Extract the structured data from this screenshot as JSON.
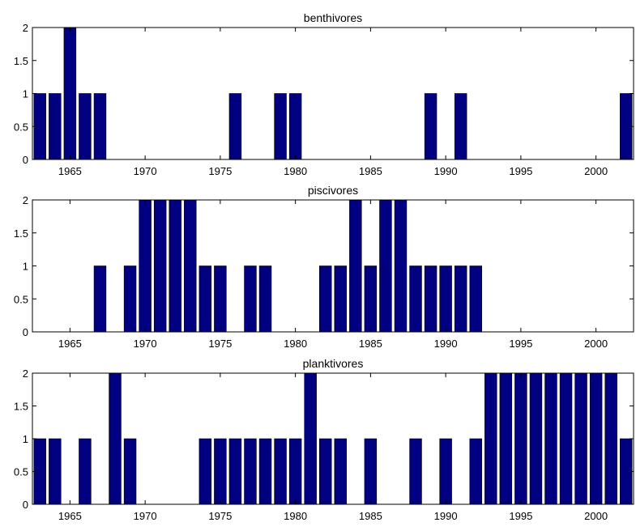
{
  "chart_data": [
    {
      "type": "bar",
      "title": "benthivores",
      "xlim": [
        1963,
        2002
      ],
      "ylim": [
        0,
        2
      ],
      "xticks": [
        1965,
        1970,
        1975,
        1980,
        1985,
        1990,
        1995,
        2000
      ],
      "yticks": [
        0,
        0.5,
        1,
        1.5,
        2
      ],
      "ytick_labels": [
        "0",
        "0.5",
        "1",
        "1.5",
        "2"
      ],
      "bar_color": "#000080",
      "x": [
        1963,
        1964,
        1965,
        1966,
        1967,
        1976,
        1979,
        1980,
        1989,
        1991,
        2002
      ],
      "values": [
        1,
        1,
        2,
        1,
        1,
        1,
        1,
        1,
        1,
        1,
        1
      ]
    },
    {
      "type": "bar",
      "title": "piscivores",
      "xlim": [
        1963,
        2002
      ],
      "ylim": [
        0,
        2
      ],
      "xticks": [
        1965,
        1970,
        1975,
        1980,
        1985,
        1990,
        1995,
        2000
      ],
      "yticks": [
        0,
        0.5,
        1,
        1.5,
        2
      ],
      "ytick_labels": [
        "0",
        "0.5",
        "1",
        "1.5",
        "2"
      ],
      "bar_color": "#000080",
      "x": [
        1967,
        1969,
        1970,
        1971,
        1972,
        1973,
        1974,
        1975,
        1977,
        1978,
        1982,
        1983,
        1984,
        1985,
        1986,
        1987,
        1988,
        1989,
        1990,
        1991,
        1992
      ],
      "values": [
        1,
        1,
        2,
        2,
        2,
        2,
        1,
        1,
        1,
        1,
        1,
        1,
        2,
        1,
        2,
        2,
        1,
        1,
        1,
        1,
        1
      ]
    },
    {
      "type": "bar",
      "title": "planktivores",
      "xlim": [
        1963,
        2002
      ],
      "ylim": [
        0,
        2
      ],
      "xticks": [
        1965,
        1970,
        1975,
        1980,
        1985,
        1990,
        1995,
        2000
      ],
      "yticks": [
        0,
        0.5,
        1,
        1.5,
        2
      ],
      "ytick_labels": [
        "0",
        "0.5",
        "1",
        "1.5",
        "2"
      ],
      "bar_color": "#000080",
      "x": [
        1963,
        1964,
        1966,
        1968,
        1969,
        1974,
        1975,
        1976,
        1977,
        1978,
        1979,
        1980,
        1981,
        1982,
        1983,
        1985,
        1988,
        1990,
        1992,
        1993,
        1994,
        1995,
        1996,
        1997,
        1998,
        1999,
        2000,
        2001,
        2002
      ],
      "values": [
        1,
        1,
        1,
        2,
        1,
        1,
        1,
        1,
        1,
        1,
        1,
        1,
        2,
        1,
        1,
        1,
        1,
        1,
        1,
        2,
        2,
        2,
        2,
        2,
        2,
        2,
        2,
        2,
        1
      ]
    }
  ]
}
